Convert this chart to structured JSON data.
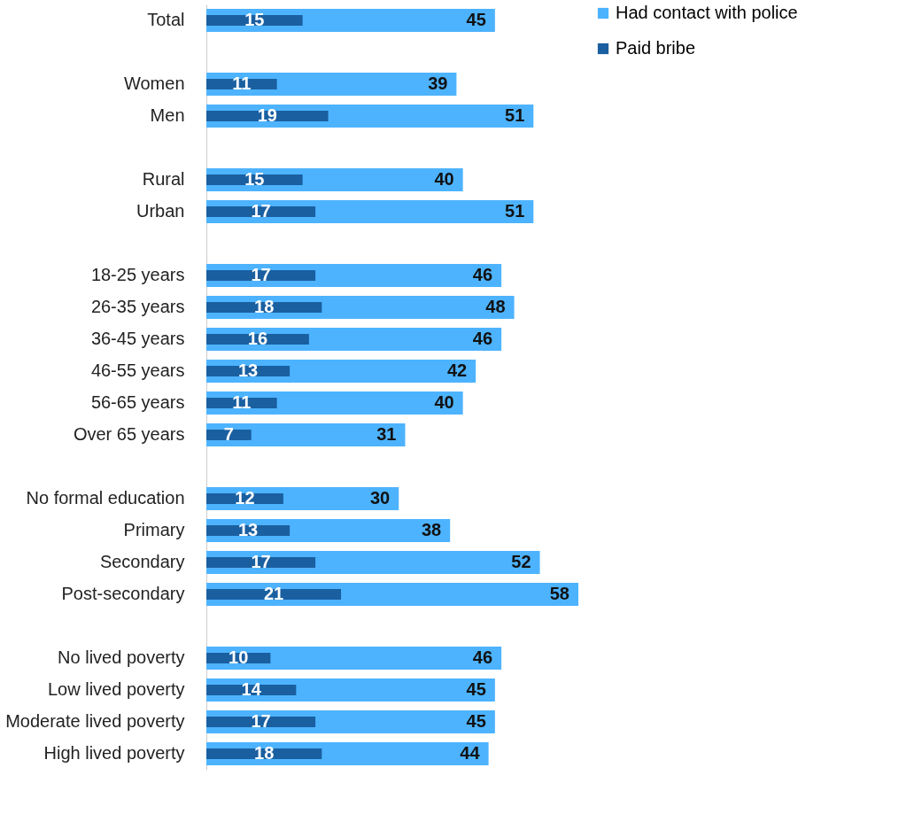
{
  "chart_data": {
    "type": "bar",
    "orientation": "horizontal",
    "data_labels": true,
    "legend": "right",
    "grid": false,
    "categories": [
      "Total",
      null,
      "Women",
      "Men",
      null,
      "Rural",
      "Urban",
      null,
      "18-25 years",
      "26-35 years",
      "36-45 years",
      "46-55 years",
      "56-65 years",
      "Over 65 years",
      null,
      "No formal education",
      "Primary",
      "Secondary",
      "Post-secondary",
      null,
      "No lived poverty",
      "Low lived poverty",
      "Moderate lived poverty",
      "High lived poverty"
    ],
    "series": [
      {
        "name": "Had contact with police",
        "color": "#4db3ff",
        "values": [
          45,
          null,
          39,
          51,
          null,
          40,
          51,
          null,
          46,
          48,
          46,
          42,
          40,
          31,
          null,
          30,
          38,
          52,
          58,
          null,
          46,
          45,
          45,
          44
        ]
      },
      {
        "name": "Paid bribe",
        "color": "#1a5fa0",
        "values": [
          15,
          null,
          11,
          19,
          null,
          15,
          17,
          null,
          17,
          18,
          16,
          13,
          11,
          7,
          null,
          12,
          13,
          17,
          21,
          null,
          10,
          14,
          17,
          18
        ]
      }
    ]
  }
}
